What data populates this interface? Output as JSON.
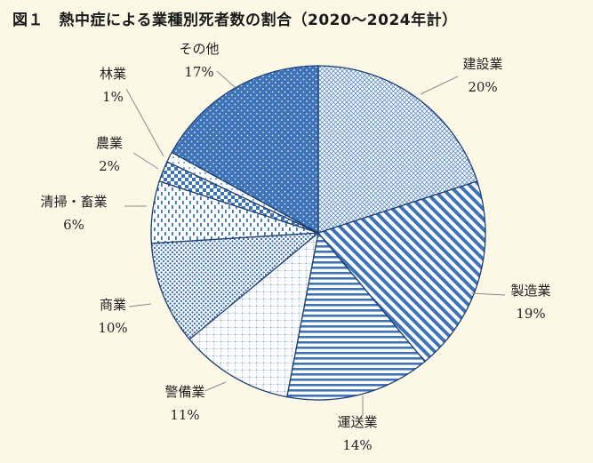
{
  "figure": {
    "title": "図１　熱中症による業種別死者数の割合（2020〜2024年計）"
  },
  "chart_data": {
    "type": "pie",
    "title": "図１　熱中症による業種別死者数の割合（2020〜2024年計）",
    "start": "12 o'clock",
    "direction": "clockwise",
    "slices": [
      {
        "label": "建設業",
        "value": 20,
        "value_label": "20%",
        "pattern": "crosshatch-light",
        "color": "#4a7fc1"
      },
      {
        "label": "製造業",
        "value": 19,
        "value_label": "19%",
        "pattern": "diagonal-stripes",
        "color": "#4a7fc1"
      },
      {
        "label": "運送業",
        "value": 14,
        "value_label": "14%",
        "pattern": "horizontal-stripes",
        "color": "#4a7fc1"
      },
      {
        "label": "警備業",
        "value": 11,
        "value_label": "11%",
        "pattern": "grid",
        "color": "#4a7fc1"
      },
      {
        "label": "商業",
        "value": 10,
        "value_label": "10%",
        "pattern": "dense-dots",
        "color": "#4a7fc1"
      },
      {
        "label": "清掃・畜業",
        "value": 6,
        "value_label": "6%",
        "pattern": "vertical-dashes",
        "color": "#4a7fc1"
      },
      {
        "label": "農業",
        "value": 2,
        "value_label": "2%",
        "pattern": "checker",
        "color": "#4a7fc1"
      },
      {
        "label": "林業",
        "value": 1,
        "value_label": "1%",
        "pattern": "sparse-dots",
        "color": "#4a7fc1"
      },
      {
        "label": "その他",
        "value": 17,
        "value_label": "17%",
        "pattern": "dots-on-solid",
        "color": "#3f73b8"
      }
    ]
  }
}
